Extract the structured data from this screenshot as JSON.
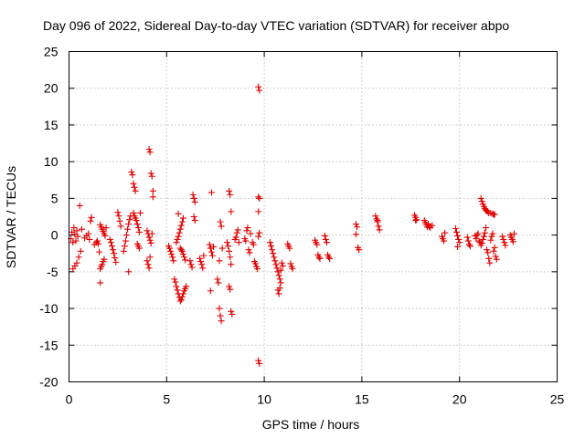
{
  "chart_data": {
    "type": "scatter",
    "title": "Day 096 of 2022, Sidereal Day-to-day VTEC variation (SDTVAR) for receiver abpo",
    "xlabel": "GPS time / hours",
    "ylabel": "SDTVAR / TECUs",
    "xlim": [
      0,
      25
    ],
    "ylim": [
      -20,
      25
    ],
    "xticks": [
      0,
      5,
      10,
      15,
      20,
      25
    ],
    "yticks": [
      -20,
      -15,
      -10,
      -5,
      0,
      5,
      10,
      15,
      20,
      25
    ],
    "grid": true,
    "marker": "+",
    "color": "#e00000",
    "series": [
      {
        "name": "SDTVAR",
        "points": [
          [
            0.1,
            -0.5
          ],
          [
            0.15,
            0.4
          ],
          [
            0.2,
            -1.0
          ],
          [
            0.25,
            1.0
          ],
          [
            0.3,
            0.1
          ],
          [
            0.35,
            -0.8
          ],
          [
            0.4,
            0.6
          ],
          [
            0.45,
            -0.2
          ],
          [
            0.2,
            -4.6
          ],
          [
            0.3,
            -4.2
          ],
          [
            0.4,
            -3.8
          ],
          [
            0.5,
            -3.0
          ],
          [
            0.55,
            4.0
          ],
          [
            0.6,
            -2.2
          ],
          [
            0.65,
            0.8
          ],
          [
            0.8,
            -0.4
          ],
          [
            0.9,
            -0.1
          ],
          [
            1.0,
            0.2
          ],
          [
            1.05,
            -0.6
          ],
          [
            1.1,
            1.9
          ],
          [
            1.15,
            2.4
          ],
          [
            1.3,
            -1.3
          ],
          [
            1.4,
            -1.0
          ],
          [
            1.45,
            -0.8
          ],
          [
            1.5,
            -1.2
          ],
          [
            1.55,
            -2.3
          ],
          [
            1.6,
            -6.5
          ],
          [
            1.6,
            -4.6
          ],
          [
            1.65,
            -4.3
          ],
          [
            1.7,
            -4.0
          ],
          [
            1.75,
            -3.6
          ],
          [
            1.8,
            -3.3
          ],
          [
            1.6,
            1.4
          ],
          [
            1.65,
            1.1
          ],
          [
            1.7,
            0.8
          ],
          [
            1.75,
            0.5
          ],
          [
            1.8,
            0.2
          ],
          [
            1.85,
            -0.1
          ],
          [
            1.9,
            1.0
          ],
          [
            2.1,
            -0.6
          ],
          [
            2.15,
            -1.0
          ],
          [
            2.2,
            -1.5
          ],
          [
            2.25,
            -2.0
          ],
          [
            2.3,
            -2.5
          ],
          [
            2.35,
            -3.1
          ],
          [
            2.4,
            -3.7
          ],
          [
            2.5,
            3.1
          ],
          [
            2.55,
            2.6
          ],
          [
            2.6,
            1.9
          ],
          [
            2.65,
            1.2
          ],
          [
            2.8,
            -2.2
          ],
          [
            2.85,
            -1.5
          ],
          [
            2.9,
            -0.8
          ],
          [
            2.95,
            0.0
          ],
          [
            3.0,
            0.8
          ],
          [
            3.05,
            1.5
          ],
          [
            3.1,
            2.1
          ],
          [
            3.15,
            2.6
          ],
          [
            3.05,
            -5.0
          ],
          [
            3.2,
            8.6
          ],
          [
            3.25,
            8.2
          ],
          [
            3.3,
            7.0
          ],
          [
            3.35,
            6.5
          ],
          [
            3.4,
            6.0
          ],
          [
            3.3,
            3.0
          ],
          [
            3.35,
            2.6
          ],
          [
            3.4,
            2.3
          ],
          [
            3.45,
            2.0
          ],
          [
            3.5,
            1.5
          ],
          [
            3.55,
            1.0
          ],
          [
            3.6,
            0.4
          ],
          [
            3.65,
            3.0
          ],
          [
            3.5,
            -1.2
          ],
          [
            3.55,
            -1.5
          ],
          [
            3.6,
            -1.8
          ],
          [
            4.0,
            -3.5
          ],
          [
            4.05,
            -4.0
          ],
          [
            4.1,
            -4.5
          ],
          [
            4.15,
            -3.0
          ],
          [
            4.1,
            11.7
          ],
          [
            4.15,
            11.3
          ],
          [
            4.2,
            8.4
          ],
          [
            4.25,
            8.0
          ],
          [
            4.3,
            6.0
          ],
          [
            4.3,
            5.2
          ],
          [
            4.0,
            0.6
          ],
          [
            4.05,
            0.2
          ],
          [
            4.1,
            -0.3
          ],
          [
            4.15,
            -0.7
          ],
          [
            4.2,
            -1.1
          ],
          [
            4.25,
            0.2
          ],
          [
            5.1,
            -1.5
          ],
          [
            5.15,
            -1.8
          ],
          [
            5.2,
            -2.2
          ],
          [
            5.25,
            -2.6
          ],
          [
            5.3,
            -3.0
          ],
          [
            5.35,
            -3.5
          ],
          [
            5.4,
            -6.0
          ],
          [
            5.45,
            -6.4
          ],
          [
            5.5,
            -7.0
          ],
          [
            5.55,
            -7.5
          ],
          [
            5.6,
            -8.0
          ],
          [
            5.65,
            -8.5
          ],
          [
            5.7,
            -9.0
          ],
          [
            5.75,
            -8.8
          ],
          [
            5.8,
            -8.4
          ],
          [
            5.85,
            -8.0
          ],
          [
            5.9,
            -7.6
          ],
          [
            5.95,
            -7.3
          ],
          [
            6.0,
            -7.0
          ],
          [
            5.5,
            -1.0
          ],
          [
            5.55,
            -0.6
          ],
          [
            5.6,
            -0.2
          ],
          [
            5.65,
            0.3
          ],
          [
            5.7,
            0.8
          ],
          [
            5.75,
            1.3
          ],
          [
            5.8,
            1.8
          ],
          [
            5.85,
            2.3
          ],
          [
            5.6,
            2.9
          ],
          [
            5.7,
            -1.8
          ],
          [
            5.75,
            -2.0
          ],
          [
            5.8,
            -2.2
          ],
          [
            5.85,
            -2.6
          ],
          [
            5.9,
            -3.0
          ],
          [
            5.95,
            -3.4
          ],
          [
            6.2,
            -3.5
          ],
          [
            6.25,
            -4.0
          ],
          [
            6.3,
            -4.4
          ],
          [
            6.35,
            5.5
          ],
          [
            6.4,
            5.0
          ],
          [
            6.45,
            4.5
          ],
          [
            6.4,
            2.5
          ],
          [
            6.45,
            2.0
          ],
          [
            6.7,
            -3.2
          ],
          [
            6.75,
            -3.6
          ],
          [
            6.8,
            -4.0
          ],
          [
            6.85,
            -4.5
          ],
          [
            6.9,
            -2.8
          ],
          [
            7.2,
            -1.3
          ],
          [
            7.25,
            -1.8
          ],
          [
            7.3,
            -2.3
          ],
          [
            7.35,
            -2.8
          ],
          [
            7.4,
            -1.6
          ],
          [
            7.25,
            -7.6
          ],
          [
            7.3,
            5.8
          ],
          [
            7.6,
            -6.0
          ],
          [
            7.65,
            -6.5
          ],
          [
            7.7,
            -10.0
          ],
          [
            7.75,
            -11.0
          ],
          [
            7.8,
            -11.7
          ],
          [
            7.7,
            -3.5
          ],
          [
            7.75,
            1.8
          ],
          [
            7.8,
            1.2
          ],
          [
            7.85,
            -1.8
          ],
          [
            8.1,
            -1.0
          ],
          [
            8.15,
            -1.5
          ],
          [
            8.2,
            -2.2
          ],
          [
            8.25,
            -3.0
          ],
          [
            8.3,
            -4.0
          ],
          [
            8.2,
            6.0
          ],
          [
            8.25,
            5.5
          ],
          [
            8.2,
            -7.0
          ],
          [
            8.25,
            -7.4
          ],
          [
            8.3,
            -10.4
          ],
          [
            8.35,
            -10.8
          ],
          [
            8.3,
            3.2
          ],
          [
            8.5,
            -0.6
          ],
          [
            8.55,
            -0.3
          ],
          [
            8.6,
            0.3
          ],
          [
            8.65,
            0.7
          ],
          [
            8.7,
            -1.0
          ],
          [
            9.0,
            -0.5
          ],
          [
            9.05,
            -0.8
          ],
          [
            9.1,
            0.6
          ],
          [
            9.15,
            1.0
          ],
          [
            9.2,
            -2.0
          ],
          [
            9.25,
            -2.4
          ],
          [
            9.3,
            0.2
          ],
          [
            9.4,
            -1.0
          ],
          [
            9.45,
            -1.3
          ],
          [
            9.5,
            -3.6
          ],
          [
            9.55,
            -3.9
          ],
          [
            9.6,
            -4.3
          ],
          [
            9.65,
            -4.6
          ],
          [
            9.7,
            -0.2
          ],
          [
            9.75,
            0.3
          ],
          [
            9.7,
            20.2
          ],
          [
            9.75,
            19.7
          ],
          [
            9.7,
            -17.1
          ],
          [
            9.75,
            -17.5
          ],
          [
            9.7,
            5.2
          ],
          [
            9.75,
            5.0
          ],
          [
            9.7,
            3.2
          ],
          [
            10.3,
            -1.0
          ],
          [
            10.35,
            -1.5
          ],
          [
            10.4,
            -2.0
          ],
          [
            10.45,
            -2.5
          ],
          [
            10.5,
            -3.0
          ],
          [
            10.55,
            -3.5
          ],
          [
            10.6,
            -4.0
          ],
          [
            10.65,
            -4.5
          ],
          [
            10.7,
            -5.0
          ],
          [
            10.75,
            -5.5
          ],
          [
            10.8,
            -6.0
          ],
          [
            10.85,
            -6.5
          ],
          [
            10.7,
            -7.5
          ],
          [
            10.75,
            -8.0
          ],
          [
            10.8,
            -7.2
          ],
          [
            10.85,
            -4.8
          ],
          [
            10.9,
            -3.8
          ],
          [
            10.95,
            -4.2
          ],
          [
            11.2,
            -1.2
          ],
          [
            11.25,
            -1.5
          ],
          [
            11.3,
            -1.8
          ],
          [
            11.35,
            -3.9
          ],
          [
            11.4,
            -4.3
          ],
          [
            11.45,
            -4.6
          ],
          [
            12.6,
            -0.7
          ],
          [
            12.65,
            -1.0
          ],
          [
            12.7,
            -1.3
          ],
          [
            12.75,
            -2.7
          ],
          [
            12.8,
            -3.0
          ],
          [
            12.85,
            -3.2
          ],
          [
            13.1,
            -0.1
          ],
          [
            13.15,
            -0.6
          ],
          [
            13.2,
            -1.0
          ],
          [
            13.25,
            -2.7
          ],
          [
            13.3,
            -3.0
          ],
          [
            13.35,
            -3.2
          ],
          [
            14.7,
            1.5
          ],
          [
            14.75,
            1.1
          ],
          [
            14.8,
            -1.7
          ],
          [
            14.85,
            -2.0
          ],
          [
            14.7,
            0.1
          ],
          [
            15.7,
            2.6
          ],
          [
            15.75,
            2.2
          ],
          [
            15.8,
            1.8
          ],
          [
            15.85,
            1.2
          ],
          [
            15.9,
            0.7
          ],
          [
            15.8,
            2.0
          ],
          [
            17.7,
            2.7
          ],
          [
            17.75,
            2.4
          ],
          [
            17.8,
            2.1
          ],
          [
            17.75,
            2.0
          ],
          [
            18.2,
            2.0
          ],
          [
            18.25,
            1.7
          ],
          [
            18.3,
            1.4
          ],
          [
            18.35,
            1.1
          ],
          [
            18.4,
            1.5
          ],
          [
            18.45,
            1.2
          ],
          [
            18.5,
            1.0
          ],
          [
            18.6,
            1.3
          ],
          [
            19.1,
            -0.2
          ],
          [
            19.15,
            -0.5
          ],
          [
            19.2,
            -0.8
          ],
          [
            19.25,
            0.3
          ],
          [
            19.8,
            0.9
          ],
          [
            19.85,
            0.4
          ],
          [
            19.9,
            -0.1
          ],
          [
            19.95,
            -0.6
          ],
          [
            20.0,
            -1.0
          ],
          [
            19.9,
            -1.6
          ],
          [
            20.4,
            -0.3
          ],
          [
            20.45,
            -0.8
          ],
          [
            20.5,
            -1.3
          ],
          [
            20.55,
            -1.5
          ],
          [
            20.8,
            -0.1
          ],
          [
            20.85,
            -0.5
          ],
          [
            20.9,
            0.0
          ],
          [
            20.95,
            0.2
          ],
          [
            21.1,
            5.0
          ],
          [
            21.15,
            4.6
          ],
          [
            21.2,
            4.2
          ],
          [
            21.25,
            3.9
          ],
          [
            21.3,
            3.6
          ],
          [
            21.35,
            3.4
          ],
          [
            21.4,
            3.3
          ],
          [
            21.45,
            3.2
          ],
          [
            21.5,
            3.0
          ],
          [
            21.6,
            3.0
          ],
          [
            21.7,
            2.9
          ],
          [
            21.75,
            2.8
          ],
          [
            21.8,
            2.8
          ],
          [
            21.0,
            -0.8
          ],
          [
            21.05,
            -1.0
          ],
          [
            21.1,
            -1.4
          ],
          [
            21.15,
            -1.1
          ],
          [
            21.2,
            -0.6
          ],
          [
            21.25,
            -0.2
          ],
          [
            21.3,
            0.3
          ],
          [
            21.35,
            1.0
          ],
          [
            21.4,
            -2.0
          ],
          [
            21.45,
            -2.4
          ],
          [
            21.5,
            -3.2
          ],
          [
            21.55,
            -3.8
          ],
          [
            21.6,
            -0.7
          ],
          [
            21.65,
            -0.2
          ],
          [
            21.7,
            0.2
          ],
          [
            21.75,
            -2.2
          ],
          [
            21.8,
            -1.7
          ],
          [
            21.85,
            -2.9
          ],
          [
            21.9,
            -3.3
          ],
          [
            22.2,
            -0.2
          ],
          [
            22.25,
            -0.6
          ],
          [
            22.3,
            -1.0
          ],
          [
            22.35,
            -1.4
          ],
          [
            22.6,
            0.0
          ],
          [
            22.65,
            -0.3
          ],
          [
            22.7,
            -0.6
          ],
          [
            22.75,
            -0.9
          ],
          [
            22.8,
            0.2
          ]
        ]
      }
    ]
  }
}
